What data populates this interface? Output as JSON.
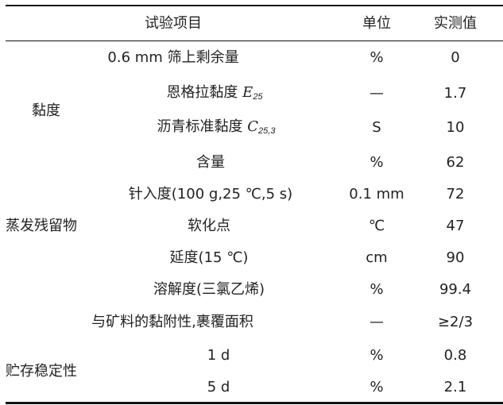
{
  "header": {
    "item": "试验项目",
    "unit": "单位",
    "value": "实测值"
  },
  "groups": {
    "viscosity": "黏度",
    "residue": "蒸发残留物",
    "storage": "贮存稳定性"
  },
  "rows": [
    {
      "item": "0.6 mm 筛上剩余量",
      "unit": "%",
      "value": "0"
    },
    {
      "item": "恩格拉黏度 ",
      "sym": "E",
      "sub": "25",
      "unit": "—",
      "value": "1.7"
    },
    {
      "item": "沥青标准黏度 ",
      "sym": "C",
      "sub": "25,3",
      "unit": "S",
      "value": "10"
    },
    {
      "item": "含量",
      "unit": "%",
      "value": "62"
    },
    {
      "item": "针入度(100 g,25 ℃,5 s)",
      "unit": "0.1 mm",
      "value": "72"
    },
    {
      "item": "软化点",
      "unit": "℃",
      "value": "47"
    },
    {
      "item": "延度(15 ℃)",
      "unit": "cm",
      "value": "90"
    },
    {
      "item": "溶解度(三氯乙烯)",
      "unit": "%",
      "value": "99.4"
    },
    {
      "item": "与矿料的黏附性,裹覆面积",
      "unit": "—",
      "value": "≥2/3"
    },
    {
      "item": "1 d",
      "unit": "%",
      "value": "0.8"
    },
    {
      "item": "5 d",
      "unit": "%",
      "value": "2.1"
    }
  ]
}
